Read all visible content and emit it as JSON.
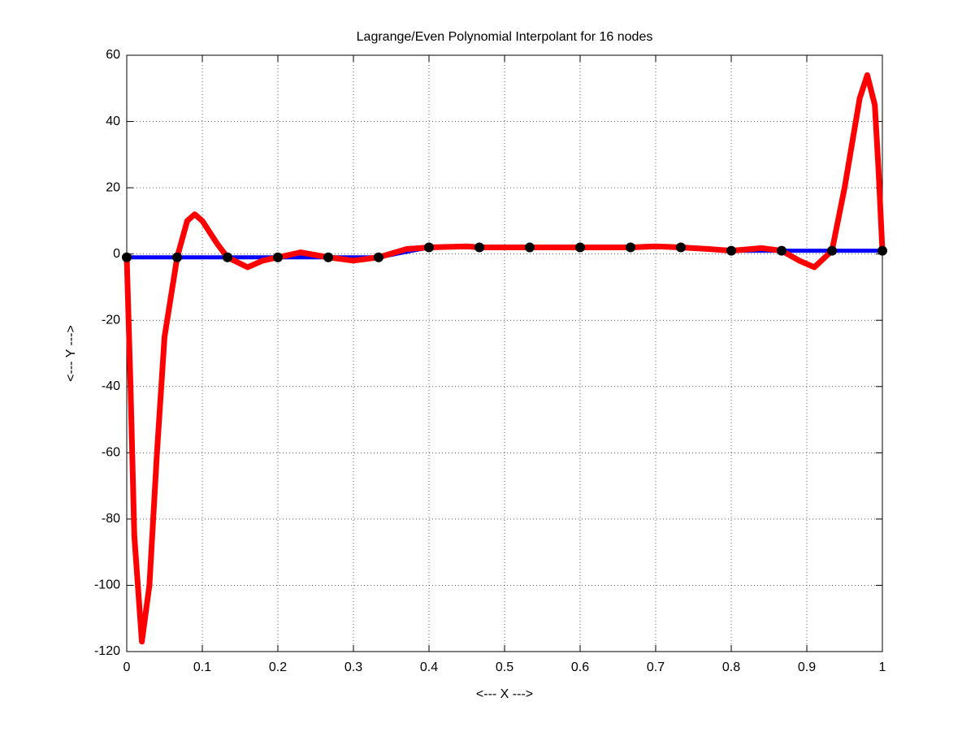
{
  "chart_data": {
    "type": "line",
    "title": "Lagrange/Even Polynomial Interpolant for 16 nodes",
    "xlabel": "<--- X --->",
    "ylabel": "<--- Y --->",
    "xlim": [
      0,
      1
    ],
    "ylim": [
      -120,
      60
    ],
    "xticks": [
      0,
      0.1,
      0.2,
      0.3,
      0.4,
      0.5,
      0.6,
      0.7,
      0.8,
      0.9,
      1
    ],
    "yticks": [
      -120,
      -100,
      -80,
      -60,
      -40,
      -20,
      0,
      20,
      40,
      60
    ],
    "grid": true,
    "series": [
      {
        "mode": "line",
        "color": "#0000ff",
        "x": [
          0,
          0.0667,
          0.1333,
          0.2,
          0.2667,
          0.3333,
          0.4,
          0.4667,
          0.5333,
          0.6,
          0.6667,
          0.7333,
          0.8,
          0.8667,
          0.9333,
          1
        ],
        "values": [
          -1,
          -1,
          -1,
          -1,
          -1,
          -1,
          2,
          2,
          2,
          2,
          2,
          2,
          1,
          1,
          1,
          1
        ]
      },
      {
        "mode": "line",
        "color": "#ff0000",
        "x": [
          0,
          0.005,
          0.01,
          0.02,
          0.03,
          0.04,
          0.05,
          0.0667,
          0.08,
          0.09,
          0.1,
          0.12,
          0.1333,
          0.16,
          0.18,
          0.2,
          0.23,
          0.2667,
          0.3,
          0.3333,
          0.37,
          0.4,
          0.45,
          0.4667,
          0.5,
          0.5333,
          0.6,
          0.6667,
          0.7,
          0.7333,
          0.77,
          0.8,
          0.84,
          0.8667,
          0.89,
          0.91,
          0.9333,
          0.95,
          0.97,
          0.98,
          0.99,
          0.995,
          1
        ],
        "values": [
          -1,
          -40,
          -85,
          -117,
          -100,
          -60,
          -25,
          -1,
          10,
          12,
          10,
          3,
          -1,
          -4,
          -2,
          -1,
          0.5,
          -1,
          -2,
          -1,
          1.5,
          2,
          2.3,
          2,
          2,
          2,
          2,
          2,
          2.3,
          2,
          1.5,
          1,
          1.8,
          1,
          -2,
          -4,
          1,
          20,
          47,
          54,
          45,
          25,
          1
        ]
      },
      {
        "mode": "markers",
        "color": "#000000",
        "x": [
          0,
          0.0667,
          0.1333,
          0.2,
          0.2667,
          0.3333,
          0.4,
          0.4667,
          0.5333,
          0.6,
          0.6667,
          0.7333,
          0.8,
          0.8667,
          0.9333,
          1
        ],
        "values": [
          -1,
          -1,
          -1,
          -1,
          -1,
          -1,
          2,
          2,
          2,
          2,
          2,
          2,
          1,
          1,
          1,
          1
        ]
      }
    ]
  }
}
